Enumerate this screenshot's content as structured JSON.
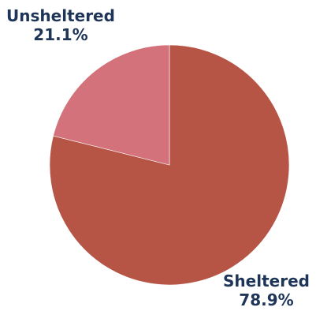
{
  "chart_data": {
    "type": "pie",
    "title": "",
    "slices": [
      {
        "label": "Sheltered",
        "value": 78.9,
        "value_label": "78.9%",
        "color": "#b65545"
      },
      {
        "label": "Unsheltered",
        "value": 21.1,
        "value_label": "21.1%",
        "color": "#d3727a"
      }
    ],
    "start_angle_deg": 0,
    "direction": "clockwise",
    "legend": "none"
  }
}
